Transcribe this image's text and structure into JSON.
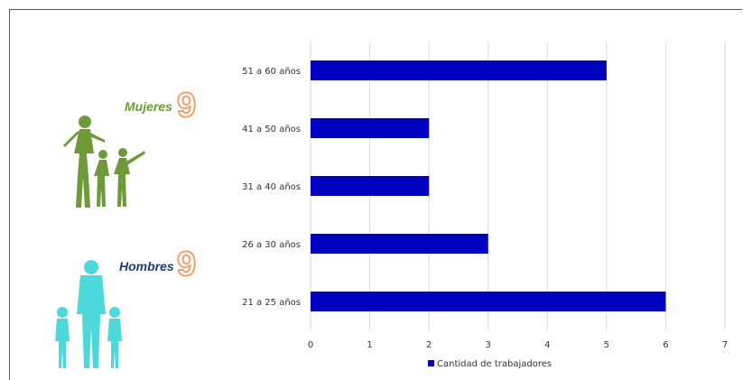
{
  "women": {
    "label": "Mujeres",
    "count": "9",
    "color": "#6f9a3a"
  },
  "men": {
    "label": "Hombres",
    "count": "9",
    "color": "#1f3a7a",
    "figure_color": "#4dd8dc"
  },
  "chart_data": {
    "type": "bar",
    "orientation": "horizontal",
    "categories": [
      "51 a 60 años",
      "41 a 50 años",
      "31 a 40 años",
      "26 a 30 años",
      "21 a 25 años"
    ],
    "series": [
      {
        "name": "Cantidad de trabajadores",
        "values": [
          5,
          2,
          2,
          3,
          6
        ],
        "color": "#0000c0"
      }
    ],
    "xlim": [
      0,
      7
    ],
    "xticks": [
      0,
      1,
      2,
      3,
      4,
      5,
      6,
      7
    ],
    "grid": true,
    "legend": "bottom"
  }
}
